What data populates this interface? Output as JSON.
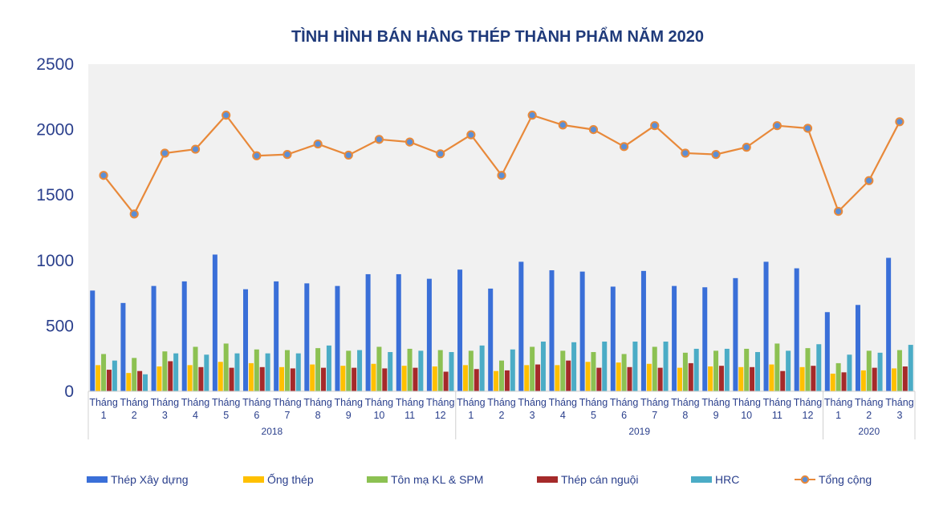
{
  "chart_data": {
    "type": "bar",
    "title": "TÌNH HÌNH BÁN HÀNG THÉP THÀNH PHẨM NĂM 2020",
    "xlabel": "",
    "ylabel": "",
    "ylim": [
      0,
      2500
    ],
    "yticks": [
      "0",
      "500",
      "1000",
      "1500",
      "2000",
      "2500"
    ],
    "ytick_values": [
      0,
      500,
      1000,
      1500,
      2000,
      2500
    ],
    "grid": false,
    "legend_position": "bottom",
    "month_prefix": "Tháng",
    "month_numbers": [
      "1",
      "2",
      "3",
      "4",
      "5",
      "6",
      "7",
      "8",
      "9",
      "10",
      "11",
      "12",
      "1",
      "2",
      "3",
      "4",
      "5",
      "6",
      "7",
      "8",
      "9",
      "10",
      "11",
      "12",
      "1",
      "2",
      "3"
    ],
    "groups": [
      {
        "label": "2018",
        "count": 12
      },
      {
        "label": "2019",
        "count": 12
      },
      {
        "label": "2020",
        "count": 3
      }
    ],
    "colors": {
      "Thép Xây dựng": "#3a6fd8",
      "Ống thép": "#ffc000",
      "Tôn mạ KL & SPM": "#8cc152",
      "Thép cán nguội": "#a52a2a",
      "HRC": "#4bacc6",
      "Tổng cộng": "#e8893a"
    },
    "series": [
      {
        "name": "Thép Xây dựng",
        "type": "bar",
        "values": [
          770,
          675,
          805,
          840,
          1045,
          780,
          840,
          825,
          805,
          895,
          895,
          860,
          930,
          785,
          990,
          925,
          915,
          800,
          920,
          805,
          795,
          865,
          990,
          940,
          605,
          660,
          1020
        ]
      },
      {
        "name": "Ống thép",
        "type": "bar",
        "values": [
          200,
          140,
          190,
          200,
          225,
          215,
          185,
          205,
          195,
          210,
          195,
          190,
          200,
          155,
          200,
          200,
          225,
          220,
          210,
          180,
          190,
          185,
          205,
          185,
          135,
          160,
          175
        ]
      },
      {
        "name": "Tôn mạ KL & SPM",
        "type": "bar",
        "values": [
          285,
          255,
          305,
          340,
          365,
          320,
          315,
          330,
          310,
          340,
          325,
          315,
          310,
          235,
          340,
          310,
          300,
          285,
          340,
          295,
          310,
          325,
          365,
          330,
          215,
          310,
          315
        ]
      },
      {
        "name": "Thép cán nguội",
        "type": "bar",
        "values": [
          165,
          155,
          230,
          185,
          180,
          185,
          175,
          180,
          180,
          175,
          180,
          150,
          170,
          160,
          205,
          235,
          180,
          185,
          180,
          215,
          195,
          185,
          155,
          195,
          145,
          180,
          190
        ]
      },
      {
        "name": "HRC",
        "type": "bar",
        "values": [
          235,
          130,
          290,
          280,
          290,
          290,
          290,
          350,
          315,
          300,
          310,
          300,
          350,
          320,
          380,
          375,
          380,
          380,
          380,
          325,
          325,
          300,
          310,
          360,
          280,
          295,
          355
        ]
      },
      {
        "name": "Tổng cộng",
        "type": "line",
        "values": [
          1650,
          1355,
          1820,
          1850,
          2110,
          1800,
          1810,
          1890,
          1805,
          1925,
          1905,
          1815,
          1960,
          1650,
          2110,
          2035,
          2000,
          1870,
          2030,
          1820,
          1810,
          1865,
          2030,
          2010,
          1375,
          1610,
          2060
        ]
      }
    ]
  }
}
